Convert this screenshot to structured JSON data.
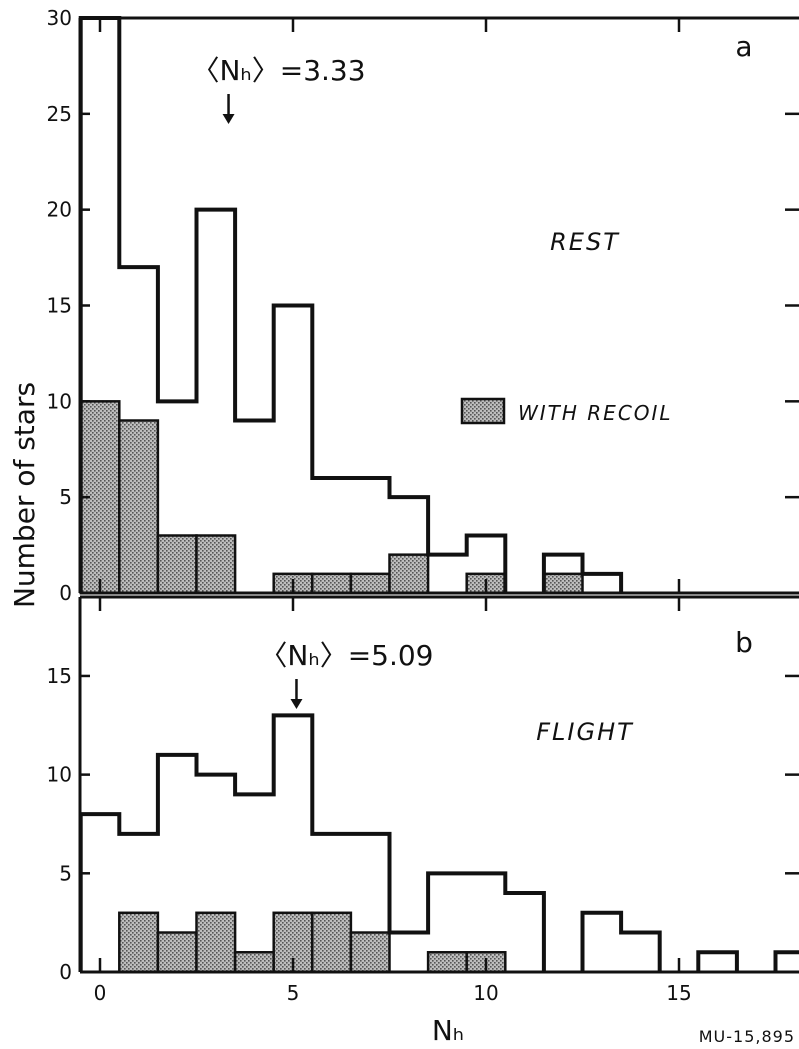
{
  "figure_id": "MU-15,895",
  "chart_data": [
    {
      "type": "bar",
      "panel": "a",
      "series_label": "REST",
      "mean_label": "〈Nₕ〉=3.33",
      "mean_value": 3.33,
      "ylabel": "Number of stars",
      "xlabel": "",
      "ylim": [
        0,
        30
      ],
      "y_ticks": [
        0,
        5,
        10,
        15,
        20,
        25,
        30
      ],
      "xlim": [
        -0.5,
        18.5
      ],
      "x_ticks": [
        0,
        5,
        10,
        15
      ],
      "legend": {
        "label": "WITH RECOIL",
        "position": "center-right"
      },
      "categories": [
        0,
        1,
        2,
        3,
        4,
        5,
        6,
        7,
        8,
        9,
        10,
        11,
        12,
        13,
        14,
        15,
        16,
        17,
        18
      ],
      "series": [
        {
          "name": "",
          "values": [
            30,
            17,
            10,
            20,
            9,
            15,
            6,
            6,
            5,
            2,
            3,
            0,
            2,
            1,
            0,
            0,
            0,
            0,
            0
          ]
        },
        {
          "name": "WITH RECOIL",
          "values": [
            10,
            9,
            3,
            3,
            0,
            1,
            1,
            1,
            2,
            0,
            1,
            0,
            1,
            0,
            0,
            0,
            0,
            0,
            0
          ]
        }
      ]
    },
    {
      "type": "bar",
      "panel": "b",
      "series_label": "FLIGHT",
      "mean_label": "〈Nₕ〉=5.09",
      "mean_value": 5.09,
      "ylabel": "",
      "xlabel": "Nₕ",
      "ylim": [
        0,
        19
      ],
      "y_ticks": [
        0,
        5,
        10,
        15
      ],
      "xlim": [
        -0.5,
        18.5
      ],
      "x_ticks": [
        0,
        5,
        10,
        15
      ],
      "x_tick_labels": [
        "0",
        "5",
        "10",
        "15"
      ],
      "categories": [
        0,
        1,
        2,
        3,
        4,
        5,
        6,
        7,
        8,
        9,
        10,
        11,
        12,
        13,
        14,
        15,
        16,
        17,
        18
      ],
      "series": [
        {
          "name": "",
          "values": [
            8,
            7,
            11,
            10,
            9,
            13,
            7,
            7,
            2,
            5,
            5,
            4,
            0,
            3,
            2,
            0,
            1,
            0,
            1
          ]
        },
        {
          "name": "WITH RECOIL",
          "values": [
            0,
            3,
            2,
            3,
            1,
            3,
            3,
            2,
            0,
            1,
            1,
            0,
            0,
            0,
            0,
            0,
            0,
            0,
            0
          ]
        }
      ]
    }
  ]
}
